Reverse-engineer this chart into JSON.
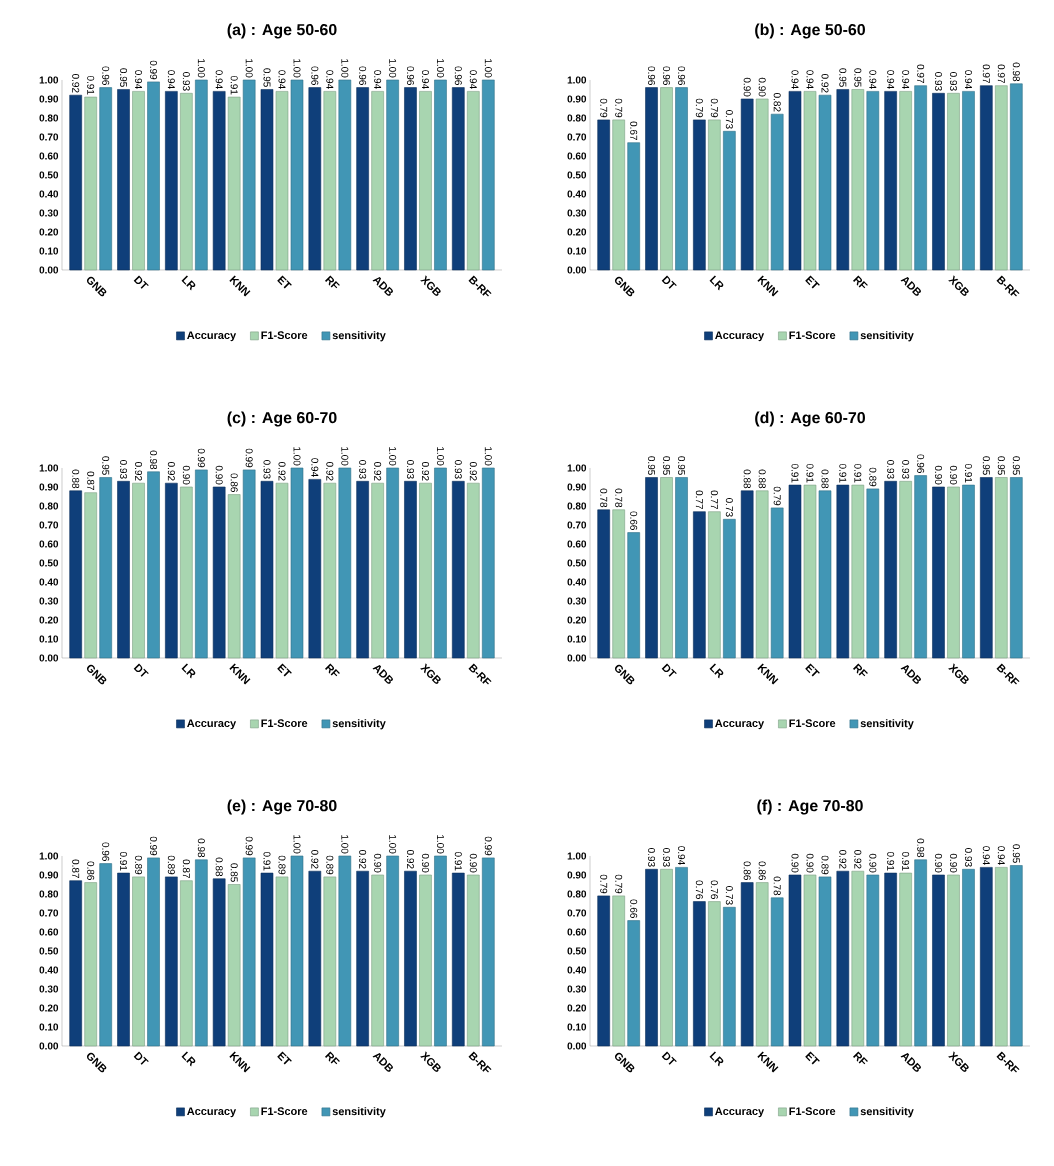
{
  "chart_data": [
    {
      "type": "bar",
      "title": "(a) : Age 50-60",
      "categories": [
        "GNB",
        "DT",
        "LR",
        "KNN",
        "ET",
        "RF",
        "ADB",
        "XGB",
        "B-RF"
      ],
      "ylim": [
        0,
        1
      ],
      "yticks": [
        {
          "value": 0,
          "label": "0.00"
        },
        {
          "value": 0.1,
          "label": "0.10"
        },
        {
          "value": 0.2,
          "label": "0.20"
        },
        {
          "value": 0.3,
          "label": "0.30"
        },
        {
          "value": 0.4,
          "label": "0.40"
        },
        {
          "value": 0.5,
          "label": "0.50"
        },
        {
          "value": 0.6,
          "label": "0.60"
        },
        {
          "value": 0.7,
          "label": "0.70"
        },
        {
          "value": 0.8,
          "label": "0.80"
        },
        {
          "value": 0.9,
          "label": "0.90"
        },
        {
          "value": 1,
          "label": "1.00"
        }
      ],
      "legend": "bottom",
      "series": [
        {
          "name": "Accuracy",
          "color": "#0f3f7a",
          "values": [
            0.92,
            0.95,
            0.94,
            0.94,
            0.95,
            0.96,
            0.96,
            0.96,
            0.96
          ],
          "value_labels": [
            "0.92",
            "0.95",
            "0.94",
            "0.94",
            "0.95",
            "0.96",
            "0.96",
            "0.96",
            "0.96"
          ]
        },
        {
          "name": "F1-Score",
          "color": "#a8d5b0",
          "values": [
            0.91,
            0.94,
            0.93,
            0.91,
            0.94,
            0.94,
            0.94,
            0.94,
            0.94
          ],
          "value_labels": [
            "0.91",
            "0.94",
            "0.93",
            "0.91",
            "0.94",
            "0.94",
            "0.94",
            "0.94",
            "0.94"
          ]
        },
        {
          "name": "sensitivity",
          "color": "#4196b5",
          "values": [
            0.96,
            0.99,
            1.0,
            1.0,
            1.0,
            1.0,
            1.0,
            1.0,
            1.0
          ],
          "value_labels": [
            "0.96",
            "0.99",
            "1.00",
            "1.00",
            "1.00",
            "1.00",
            "1.00",
            "1.00",
            "1.00"
          ]
        }
      ]
    },
    {
      "type": "bar",
      "title": "(b) : Age 50-60",
      "categories": [
        "GNB",
        "DT",
        "LR",
        "KNN",
        "ET",
        "RF",
        "ADB",
        "XGB",
        "B-RF"
      ],
      "ylim": [
        0,
        1
      ],
      "yticks": [
        {
          "value": 0,
          "label": "0.00"
        },
        {
          "value": 0.1,
          "label": "0.10"
        },
        {
          "value": 0.2,
          "label": "0.20"
        },
        {
          "value": 0.3,
          "label": "0.30"
        },
        {
          "value": 0.4,
          "label": "0.40"
        },
        {
          "value": 0.5,
          "label": "0.50"
        },
        {
          "value": 0.6,
          "label": "0.60"
        },
        {
          "value": 0.7,
          "label": "0.70"
        },
        {
          "value": 0.8,
          "label": "0.80"
        },
        {
          "value": 0.9,
          "label": "0.90"
        },
        {
          "value": 1,
          "label": "1.00"
        }
      ],
      "legend": "bottom",
      "series": [
        {
          "name": "Accuracy",
          "color": "#0f3f7a",
          "values": [
            0.79,
            0.96,
            0.79,
            0.9,
            0.94,
            0.95,
            0.94,
            0.93,
            0.97
          ],
          "value_labels": [
            "0.79",
            "0.96",
            "0.79",
            "0.90",
            "0.94",
            "0.95",
            "0.94",
            "0.93",
            "0.97"
          ]
        },
        {
          "name": "F1-Score",
          "color": "#a8d5b0",
          "values": [
            0.79,
            0.96,
            0.79,
            0.9,
            0.94,
            0.95,
            0.94,
            0.93,
            0.97
          ],
          "value_labels": [
            "0.79",
            "0.96",
            "0.79",
            "0.90",
            "0.94",
            "0.95",
            "0.94",
            "0.93",
            "0.97"
          ]
        },
        {
          "name": "sensitivity",
          "color": "#4196b5",
          "values": [
            0.67,
            0.96,
            0.73,
            0.82,
            0.92,
            0.94,
            0.97,
            0.94,
            0.98
          ],
          "value_labels": [
            "0.67",
            "0.96",
            "0.73",
            "0.82",
            "0.92",
            "0.94",
            "0.97",
            "0.94",
            "0.98"
          ]
        }
      ]
    },
    {
      "type": "bar",
      "title": "(c) : Age 60-70",
      "categories": [
        "GNB",
        "DT",
        "LR",
        "KNN",
        "ET",
        "RF",
        "ADB",
        "XGB",
        "B-RF"
      ],
      "ylim": [
        0,
        1
      ],
      "yticks": [
        {
          "value": 0,
          "label": "0.00"
        },
        {
          "value": 0.1,
          "label": "0.10"
        },
        {
          "value": 0.2,
          "label": "0.20"
        },
        {
          "value": 0.3,
          "label": "0.30"
        },
        {
          "value": 0.4,
          "label": "0.40"
        },
        {
          "value": 0.5,
          "label": "0.50"
        },
        {
          "value": 0.6,
          "label": "0.60"
        },
        {
          "value": 0.7,
          "label": "0.70"
        },
        {
          "value": 0.8,
          "label": "0.80"
        },
        {
          "value": 0.9,
          "label": "0.90"
        },
        {
          "value": 1,
          "label": "1.00"
        }
      ],
      "legend": "bottom",
      "series": [
        {
          "name": "Accuracy",
          "color": "#0f3f7a",
          "values": [
            0.88,
            0.93,
            0.92,
            0.9,
            0.93,
            0.94,
            0.93,
            0.93,
            0.93
          ],
          "value_labels": [
            "0.88",
            "0.93",
            "0.92",
            "0.90",
            "0.93",
            "0.94",
            "0.93",
            "0.93",
            "0.93"
          ]
        },
        {
          "name": "F1-Score",
          "color": "#a8d5b0",
          "values": [
            0.87,
            0.92,
            0.9,
            0.86,
            0.92,
            0.92,
            0.92,
            0.92,
            0.92
          ],
          "value_labels": [
            "0.87",
            "0.92",
            "0.90",
            "0.86",
            "0.92",
            "0.92",
            "0.92",
            "0.92",
            "0.92"
          ]
        },
        {
          "name": "sensitivity",
          "color": "#4196b5",
          "values": [
            0.95,
            0.98,
            0.99,
            0.99,
            1.0,
            1.0,
            1.0,
            1.0,
            1.0
          ],
          "value_labels": [
            "0.95",
            "0.98",
            "0.99",
            "0.99",
            "1.00",
            "1.00",
            "1.00",
            "1.00",
            "1.00"
          ]
        }
      ]
    },
    {
      "type": "bar",
      "title": "(d) : Age 60-70",
      "categories": [
        "GNB",
        "DT",
        "LR",
        "KNN",
        "ET",
        "RF",
        "ADB",
        "XGB",
        "B-RF"
      ],
      "ylim": [
        0,
        1
      ],
      "yticks": [
        {
          "value": 0,
          "label": "0.00"
        },
        {
          "value": 0.1,
          "label": "0.10"
        },
        {
          "value": 0.2,
          "label": "0.20"
        },
        {
          "value": 0.3,
          "label": "0.30"
        },
        {
          "value": 0.4,
          "label": "0.40"
        },
        {
          "value": 0.5,
          "label": "0.50"
        },
        {
          "value": 0.6,
          "label": "0.60"
        },
        {
          "value": 0.7,
          "label": "0.70"
        },
        {
          "value": 0.8,
          "label": "0.80"
        },
        {
          "value": 0.9,
          "label": "0.90"
        },
        {
          "value": 1,
          "label": "1.00"
        }
      ],
      "legend": "bottom",
      "series": [
        {
          "name": "Accuracy",
          "color": "#0f3f7a",
          "values": [
            0.78,
            0.95,
            0.77,
            0.88,
            0.91,
            0.91,
            0.93,
            0.9,
            0.95
          ],
          "value_labels": [
            "0.78",
            "0.95",
            "0.77",
            "0.88",
            "0.91",
            "0.91",
            "0.93",
            "0.90",
            "0.95"
          ]
        },
        {
          "name": "F1-Score",
          "color": "#a8d5b0",
          "values": [
            0.78,
            0.95,
            0.77,
            0.88,
            0.91,
            0.91,
            0.93,
            0.9,
            0.95
          ],
          "value_labels": [
            "0.78",
            "0.95",
            "0.77",
            "0.88",
            "0.91",
            "0.91",
            "0.93",
            "0.90",
            "0.95"
          ]
        },
        {
          "name": "sensitivity",
          "color": "#4196b5",
          "values": [
            0.66,
            0.95,
            0.73,
            0.79,
            0.88,
            0.89,
            0.96,
            0.91,
            0.95
          ],
          "value_labels": [
            "0.66",
            "0.95",
            "0.73",
            "0.79",
            "0.88",
            "0.89",
            "0.96",
            "0.91",
            "0.95"
          ]
        }
      ]
    },
    {
      "type": "bar",
      "title": "(e) : Age 70-80",
      "categories": [
        "GNB",
        "DT",
        "LR",
        "KNN",
        "ET",
        "RF",
        "ADB",
        "XGB",
        "B-RF"
      ],
      "ylim": [
        0,
        1
      ],
      "yticks": [
        {
          "value": 0,
          "label": "0.00"
        },
        {
          "value": 0.1,
          "label": "0.10"
        },
        {
          "value": 0.2,
          "label": "0.20"
        },
        {
          "value": 0.3,
          "label": "0.30"
        },
        {
          "value": 0.4,
          "label": "0.40"
        },
        {
          "value": 0.5,
          "label": "0.50"
        },
        {
          "value": 0.6,
          "label": "0.60"
        },
        {
          "value": 0.7,
          "label": "0.70"
        },
        {
          "value": 0.8,
          "label": "0.80"
        },
        {
          "value": 0.9,
          "label": "0.90"
        },
        {
          "value": 1,
          "label": "1.00"
        }
      ],
      "legend": "bottom",
      "series": [
        {
          "name": "Accuracy",
          "color": "#0f3f7a",
          "values": [
            0.87,
            0.91,
            0.89,
            0.88,
            0.91,
            0.92,
            0.92,
            0.92,
            0.91
          ],
          "value_labels": [
            "0.87",
            "0.91",
            "0.89",
            "0.88",
            "0.91",
            "0.92",
            "0.92",
            "0.92",
            "0.91"
          ]
        },
        {
          "name": "F1-Score",
          "color": "#a8d5b0",
          "values": [
            0.86,
            0.89,
            0.87,
            0.85,
            0.89,
            0.89,
            0.9,
            0.9,
            0.9
          ],
          "value_labels": [
            "0.86",
            "0.89",
            "0.87",
            "0.85",
            "0.89",
            "0.89",
            "0.90",
            "0.90",
            "0.90"
          ]
        },
        {
          "name": "sensitivity",
          "color": "#4196b5",
          "values": [
            0.96,
            0.99,
            0.98,
            0.99,
            1.0,
            1.0,
            1.0,
            1.0,
            0.99
          ],
          "value_labels": [
            "0.96",
            "0.99",
            "0.98",
            "0.99",
            "1.00",
            "1.00",
            "1.00",
            "1.00",
            "0.99"
          ]
        }
      ]
    },
    {
      "type": "bar",
      "title": "(f) : Age 70-80",
      "categories": [
        "GNB",
        "DT",
        "LR",
        "KNN",
        "ET",
        "RF",
        "ADB",
        "XGB",
        "B-RF"
      ],
      "ylim": [
        0,
        1
      ],
      "yticks": [
        {
          "value": 0,
          "label": "0.00"
        },
        {
          "value": 0.1,
          "label": "0.10"
        },
        {
          "value": 0.2,
          "label": "0.20"
        },
        {
          "value": 0.3,
          "label": "0.30"
        },
        {
          "value": 0.4,
          "label": "0.40"
        },
        {
          "value": 0.5,
          "label": "0.50"
        },
        {
          "value": 0.6,
          "label": "0.60"
        },
        {
          "value": 0.7,
          "label": "0.70"
        },
        {
          "value": 0.8,
          "label": "0.80"
        },
        {
          "value": 0.9,
          "label": "0.90"
        },
        {
          "value": 1,
          "label": "1.00"
        }
      ],
      "legend": "bottom",
      "series": [
        {
          "name": "Accuracy",
          "color": "#0f3f7a",
          "values": [
            0.79,
            0.93,
            0.76,
            0.86,
            0.9,
            0.92,
            0.91,
            0.9,
            0.94
          ],
          "value_labels": [
            "0.79",
            "0.93",
            "0.76",
            "0.86",
            "0.90",
            "0.92",
            "0.91",
            "0.90",
            "0.94"
          ]
        },
        {
          "name": "F1-Score",
          "color": "#a8d5b0",
          "values": [
            0.79,
            0.93,
            0.76,
            0.86,
            0.9,
            0.92,
            0.91,
            0.9,
            0.94
          ],
          "value_labels": [
            "0.79",
            "0.93",
            "0.76",
            "0.86",
            "0.90",
            "0.92",
            "0.91",
            "0.90",
            "0.94"
          ]
        },
        {
          "name": "sensitivity",
          "color": "#4196b5",
          "values": [
            0.66,
            0.94,
            0.73,
            0.78,
            0.89,
            0.9,
            0.98,
            0.93,
            0.95
          ],
          "value_labels": [
            "0.66",
            "0.94",
            "0.73",
            "0.78",
            "0.89",
            "0.90",
            "0.98",
            "0.93",
            "0.95"
          ]
        }
      ]
    }
  ]
}
